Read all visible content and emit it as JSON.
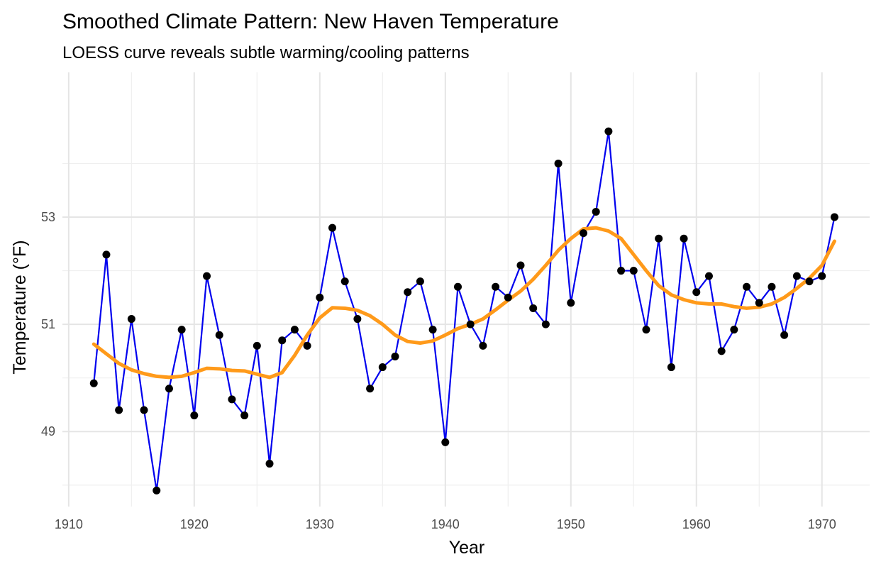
{
  "chart_data": {
    "type": "line",
    "title": "Smoothed Climate Pattern: New Haven Temperature",
    "subtitle": "LOESS curve reveals subtle warming/cooling patterns",
    "xlabel": "Year",
    "ylabel": "Temperature (°F)",
    "xlim": [
      1909.5,
      1973.8
    ],
    "ylim": [
      47.6,
      55.7
    ],
    "x_ticks": [
      1910,
      1920,
      1930,
      1940,
      1950,
      1960,
      1970
    ],
    "x_tick_labels": [
      "1910",
      "1920",
      "1930",
      "1940",
      "1950",
      "1960",
      "1970"
    ],
    "y_ticks": [
      49,
      51,
      53
    ],
    "y_tick_labels": [
      "49",
      "51",
      "53"
    ],
    "grid": true,
    "legend": "none",
    "series": [
      {
        "kind": "line+points",
        "color": "#0000ee",
        "point_color": "#000000",
        "x": [
          1912,
          1913,
          1914,
          1915,
          1916,
          1917,
          1918,
          1919,
          1920,
          1921,
          1922,
          1923,
          1924,
          1925,
          1926,
          1927,
          1928,
          1929,
          1930,
          1931,
          1932,
          1933,
          1934,
          1935,
          1936,
          1937,
          1938,
          1939,
          1940,
          1941,
          1942,
          1943,
          1944,
          1945,
          1946,
          1947,
          1948,
          1949,
          1950,
          1951,
          1952,
          1953,
          1954,
          1955,
          1956,
          1957,
          1958,
          1959,
          1960,
          1961,
          1962,
          1963,
          1964,
          1965,
          1966,
          1967,
          1968,
          1969,
          1970,
          1971
        ],
        "values": [
          49.9,
          52.3,
          49.4,
          51.1,
          49.4,
          47.9,
          49.8,
          50.9,
          49.3,
          51.9,
          50.8,
          49.6,
          49.3,
          50.6,
          48.4,
          50.7,
          50.9,
          50.6,
          51.5,
          52.8,
          51.8,
          51.1,
          49.8,
          50.2,
          50.4,
          51.6,
          51.8,
          50.9,
          48.8,
          51.7,
          51.0,
          50.6,
          51.7,
          51.5,
          52.1,
          51.3,
          51.0,
          54.0,
          51.4,
          52.7,
          53.1,
          54.6,
          52.0,
          52.0,
          50.9,
          52.6,
          50.2,
          52.6,
          51.6,
          51.9,
          50.5,
          50.9,
          51.7,
          51.4,
          51.7,
          50.8,
          51.9,
          51.8,
          51.9,
          53.0
        ]
      },
      {
        "kind": "smooth",
        "color": "#ff9a1a",
        "x": [
          1912,
          1913,
          1914,
          1915,
          1916,
          1917,
          1918,
          1919,
          1920,
          1921,
          1922,
          1923,
          1924,
          1925,
          1926,
          1927,
          1928,
          1929,
          1930,
          1931,
          1932,
          1933,
          1934,
          1935,
          1936,
          1937,
          1938,
          1939,
          1940,
          1941,
          1942,
          1943,
          1944,
          1945,
          1946,
          1947,
          1948,
          1949,
          1950,
          1951,
          1952,
          1953,
          1954,
          1955,
          1956,
          1957,
          1958,
          1959,
          1960,
          1961,
          1962,
          1963,
          1964,
          1965,
          1966,
          1967,
          1968,
          1969,
          1970,
          1971
        ],
        "values": [
          50.63,
          50.45,
          50.27,
          50.15,
          50.08,
          50.03,
          50.01,
          50.03,
          50.1,
          50.18,
          50.17,
          50.14,
          50.13,
          50.07,
          50.01,
          50.1,
          50.42,
          50.8,
          51.12,
          51.31,
          51.3,
          51.26,
          51.16,
          51.0,
          50.8,
          50.68,
          50.65,
          50.69,
          50.8,
          50.92,
          51.0,
          51.1,
          51.27,
          51.45,
          51.62,
          51.84,
          52.1,
          52.38,
          52.6,
          52.78,
          52.8,
          52.74,
          52.6,
          52.3,
          52.0,
          51.72,
          51.55,
          51.46,
          51.4,
          51.38,
          51.38,
          51.33,
          51.3,
          51.32,
          51.38,
          51.5,
          51.67,
          51.86,
          52.1,
          52.55
        ]
      }
    ]
  }
}
